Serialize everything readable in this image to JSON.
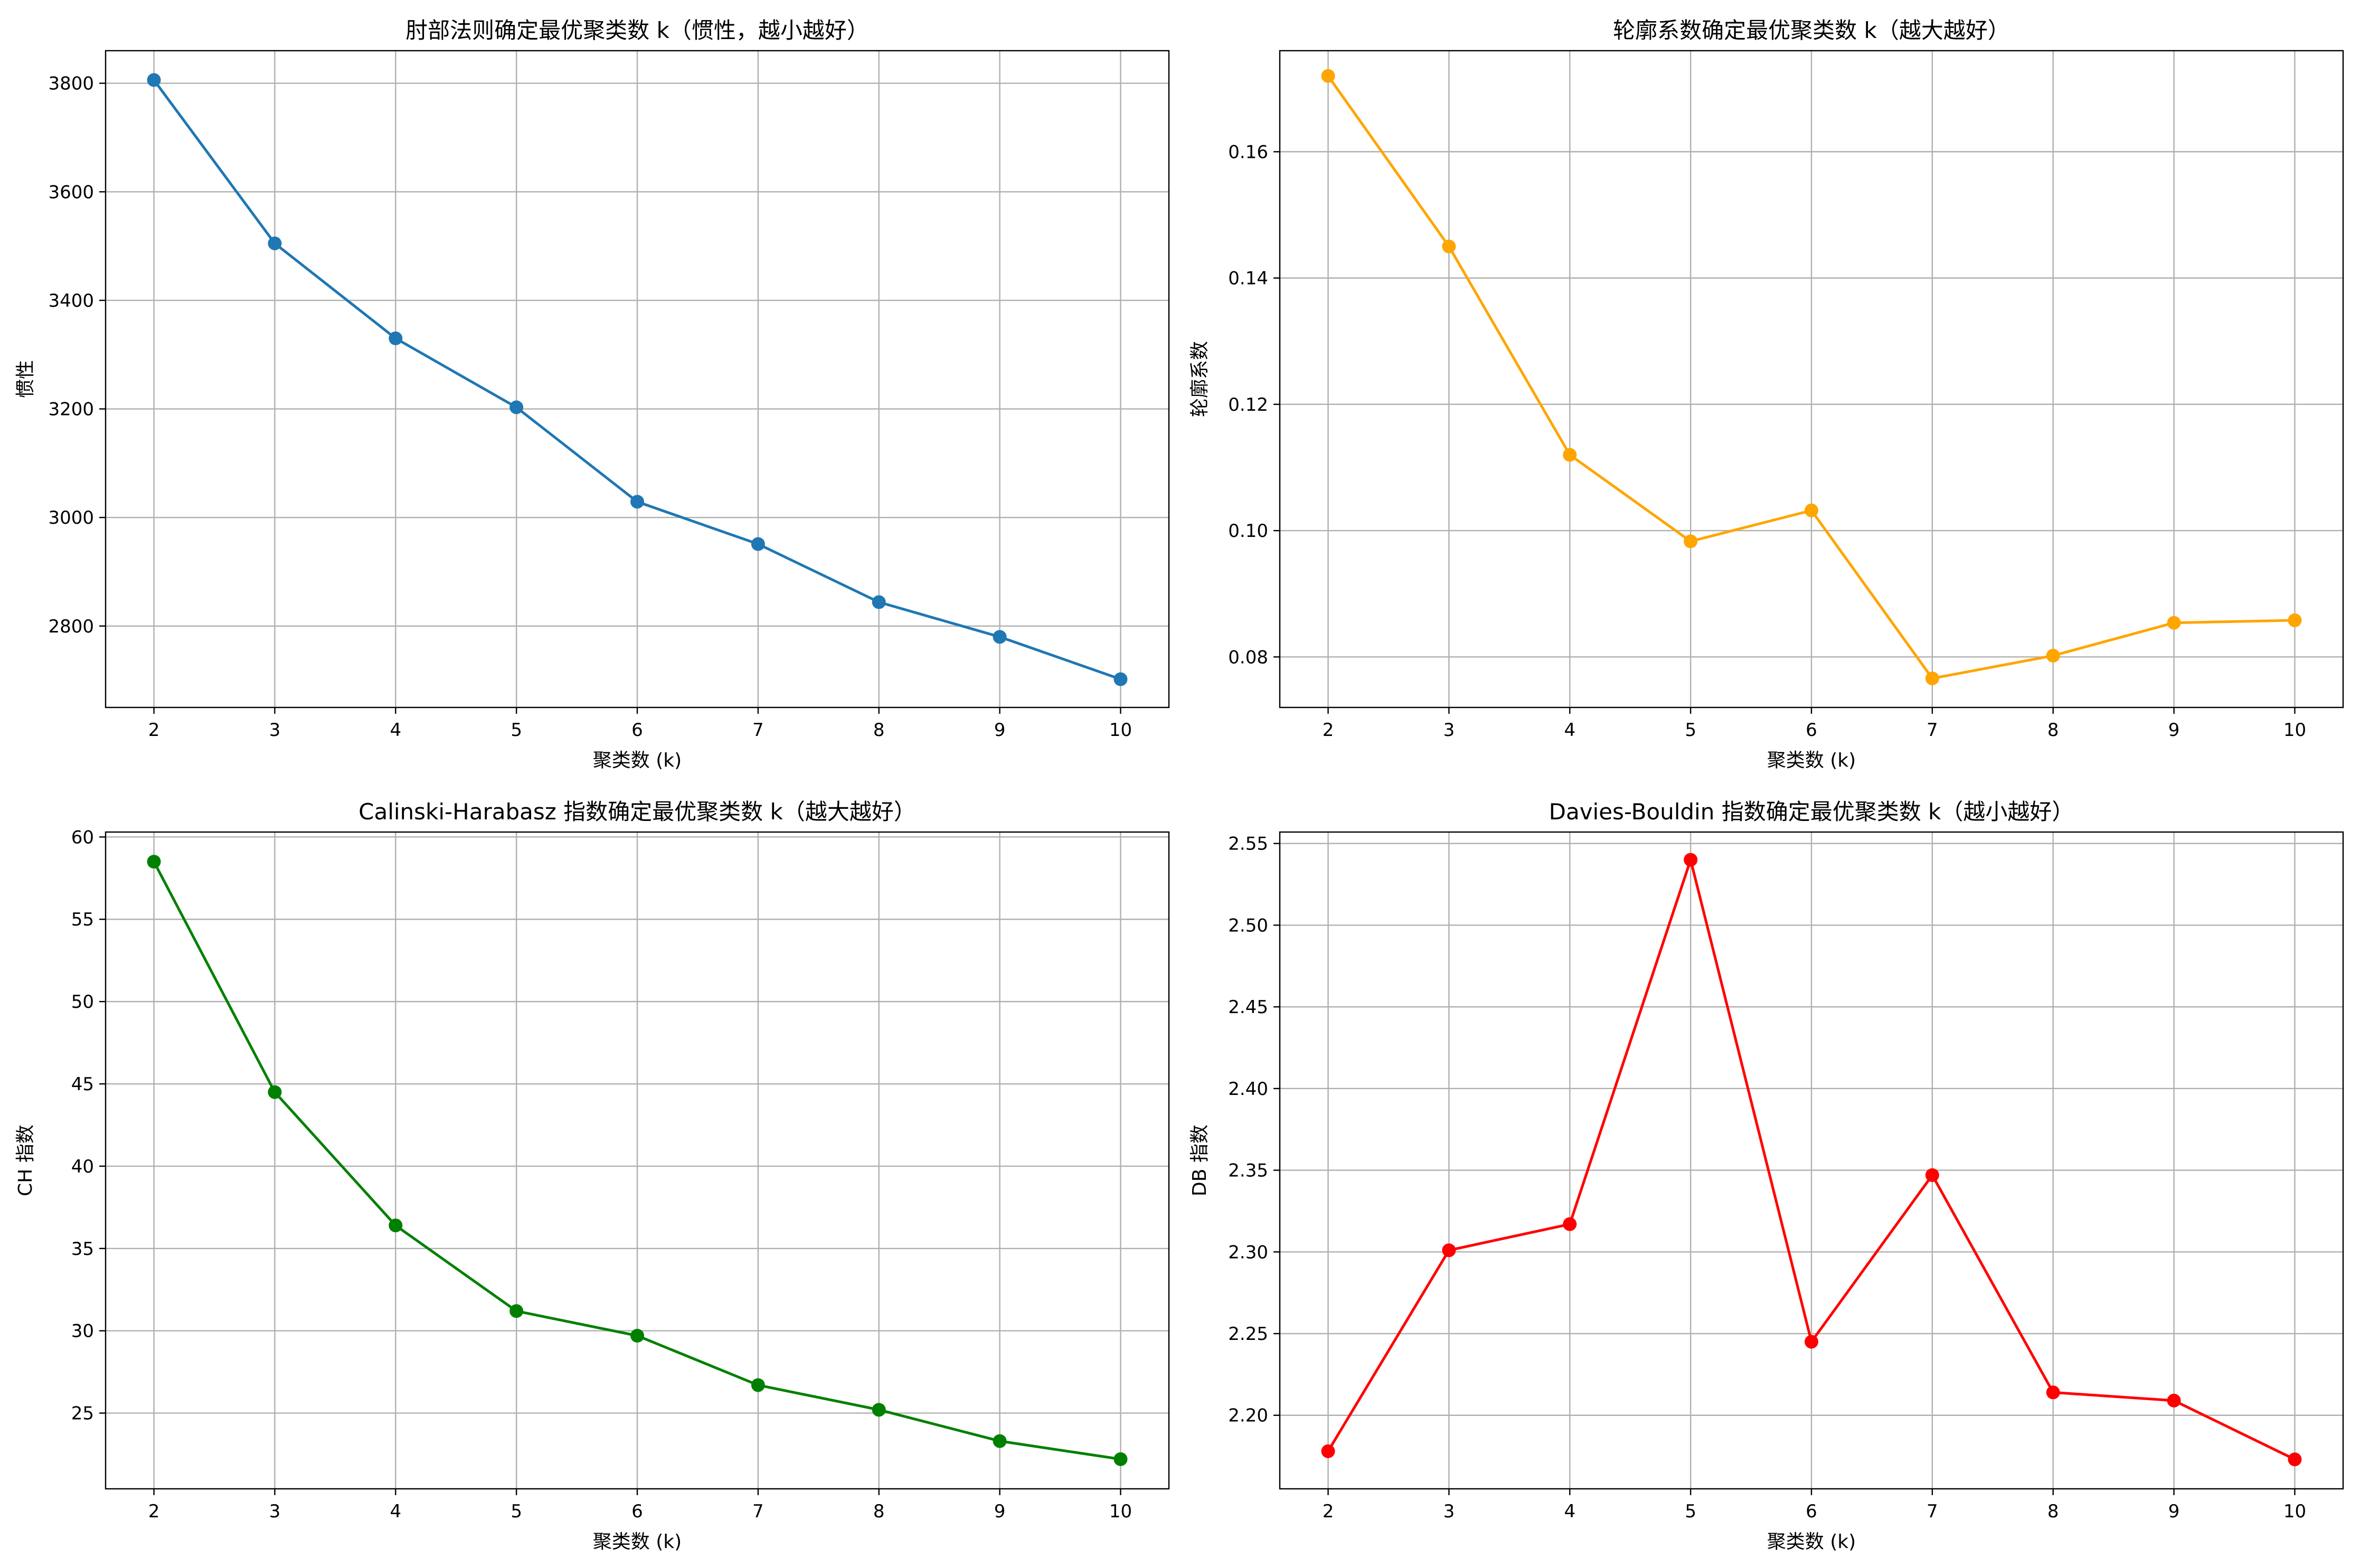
{
  "chart_data": [
    {
      "type": "line",
      "title": "肘部法则确定最优聚类数 k（惯性，越小越好）",
      "xlabel": "聚类数 (k)",
      "ylabel": "惯性",
      "color": "#1f77b4",
      "x": [
        2,
        3,
        4,
        5,
        6,
        7,
        8,
        9,
        10
      ],
      "y": [
        3806,
        3505,
        3330,
        3203,
        3029,
        2951,
        2844,
        2780,
        2702
      ],
      "xlim": [
        1.6,
        10.4
      ],
      "ylim": [
        2650,
        3860
      ],
      "xticks": [
        2,
        3,
        4,
        5,
        6,
        7,
        8,
        9,
        10
      ],
      "xtick_labels": [
        "2",
        "3",
        "4",
        "5",
        "6",
        "7",
        "8",
        "9",
        "10"
      ],
      "yticks": [
        2800,
        3000,
        3200,
        3400,
        3600,
        3800
      ],
      "ytick_labels": [
        "2800",
        "3000",
        "3200",
        "3400",
        "3600",
        "3800"
      ],
      "grid": true,
      "marker": "circle"
    },
    {
      "type": "line",
      "title": "轮廓系数确定最优聚类数 k（越大越好）",
      "xlabel": "聚类数 (k)",
      "ylabel": "轮廓系数",
      "color": "#ffa500",
      "x": [
        2,
        3,
        4,
        5,
        6,
        7,
        8,
        9,
        10
      ],
      "y": [
        0.172,
        0.145,
        0.112,
        0.0983,
        0.1032,
        0.0766,
        0.0802,
        0.0854,
        0.0858
      ],
      "xlim": [
        1.6,
        10.4
      ],
      "ylim": [
        0.072,
        0.176
      ],
      "xticks": [
        2,
        3,
        4,
        5,
        6,
        7,
        8,
        9,
        10
      ],
      "xtick_labels": [
        "2",
        "3",
        "4",
        "5",
        "6",
        "7",
        "8",
        "9",
        "10"
      ],
      "yticks": [
        0.08,
        0.1,
        0.12,
        0.14,
        0.16
      ],
      "ytick_labels": [
        "0.08",
        "0.10",
        "0.12",
        "0.14",
        "0.16"
      ],
      "grid": true,
      "marker": "circle"
    },
    {
      "type": "line",
      "title": "Calinski-Harabasz 指数确定最优聚类数 k（越大越好）",
      "xlabel": "聚类数 (k)",
      "ylabel": "CH 指数",
      "color": "#008000",
      "x": [
        2,
        3,
        4,
        5,
        6,
        7,
        8,
        9,
        10
      ],
      "y": [
        58.5,
        44.5,
        36.4,
        31.2,
        29.7,
        26.7,
        25.2,
        23.3,
        22.2
      ],
      "xlim": [
        1.6,
        10.4
      ],
      "ylim": [
        20.4,
        60.3
      ],
      "xticks": [
        2,
        3,
        4,
        5,
        6,
        7,
        8,
        9,
        10
      ],
      "xtick_labels": [
        "2",
        "3",
        "4",
        "5",
        "6",
        "7",
        "8",
        "9",
        "10"
      ],
      "yticks": [
        25,
        30,
        35,
        40,
        45,
        50,
        55,
        60
      ],
      "ytick_labels": [
        "25",
        "30",
        "35",
        "40",
        "45",
        "50",
        "55",
        "60"
      ],
      "grid": true,
      "marker": "circle"
    },
    {
      "type": "line",
      "title": "Davies-Bouldin 指数确定最优聚类数 k（越小越好）",
      "xlabel": "聚类数 (k)",
      "ylabel": "DB 指数",
      "color": "#ff0000",
      "x": [
        2,
        3,
        4,
        5,
        6,
        7,
        8,
        9,
        10
      ],
      "y": [
        2.178,
        2.301,
        2.317,
        2.54,
        2.245,
        2.347,
        2.214,
        2.209,
        2.173
      ],
      "xlim": [
        1.6,
        10.4
      ],
      "ylim": [
        2.155,
        2.557
      ],
      "xticks": [
        2,
        3,
        4,
        5,
        6,
        7,
        8,
        9,
        10
      ],
      "xtick_labels": [
        "2",
        "3",
        "4",
        "5",
        "6",
        "7",
        "8",
        "9",
        "10"
      ],
      "yticks": [
        2.2,
        2.25,
        2.3,
        2.35,
        2.4,
        2.45,
        2.5,
        2.55
      ],
      "ytick_labels": [
        "2.20",
        "2.25",
        "2.30",
        "2.35",
        "2.40",
        "2.45",
        "2.50",
        "2.55"
      ],
      "grid": true,
      "marker": "circle"
    }
  ]
}
